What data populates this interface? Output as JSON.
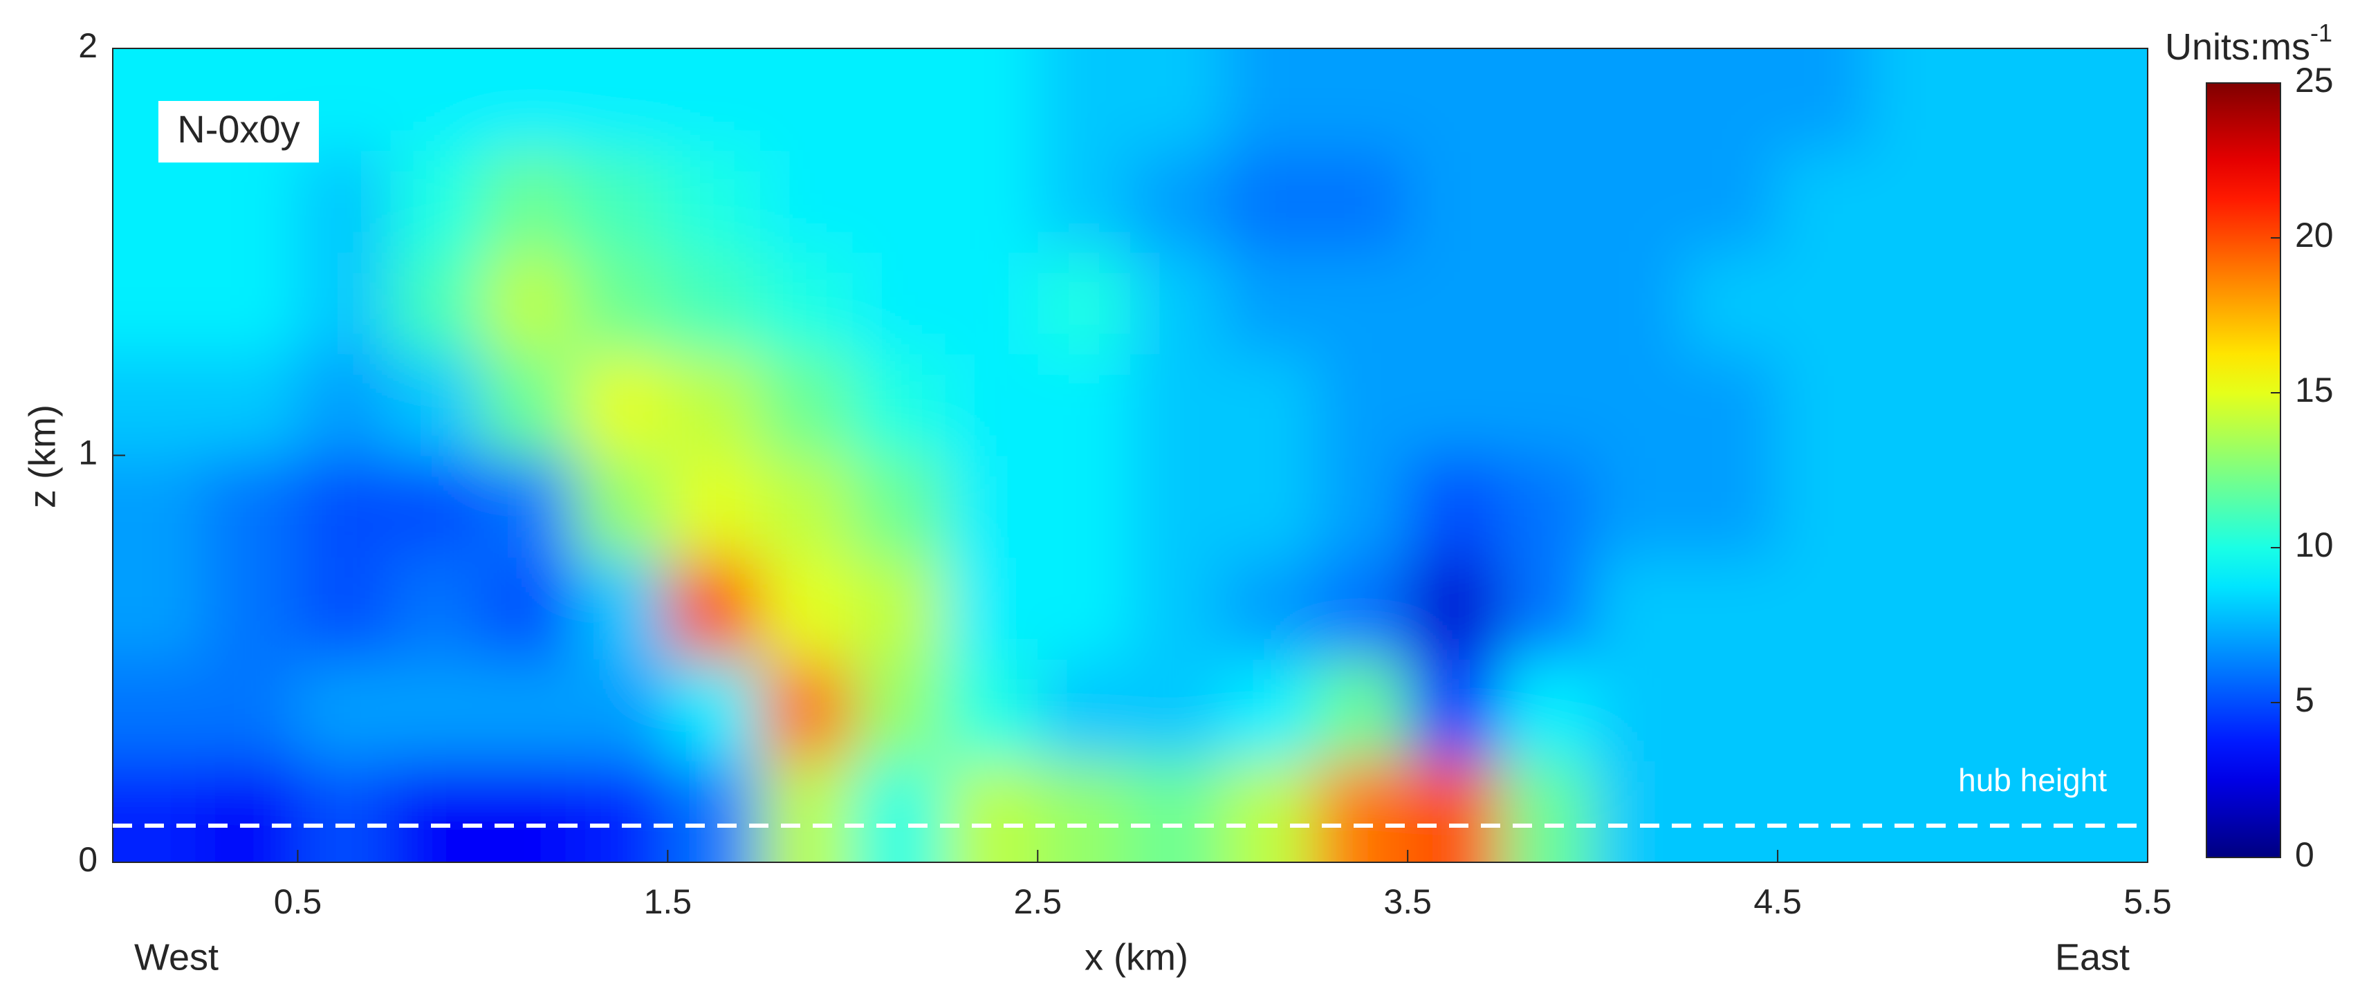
{
  "chart_data": {
    "type": "heatmap",
    "annotation": "N-0x0y",
    "hub_label": "hub height",
    "hub_height": 0.09,
    "x_label": "x (km)",
    "y_label": "z (km)",
    "west_label": "West",
    "east_label": "East",
    "colorbar_label": "Units:ms",
    "colorbar_label_sup": "-1",
    "colormap": "jet",
    "xlim": [
      0,
      5.5
    ],
    "xticks": [
      0.5,
      1.5,
      2.5,
      3.5,
      4.5,
      5.5
    ],
    "ylim": [
      0,
      2
    ],
    "yticks": [
      0,
      1,
      2
    ],
    "clim": [
      0,
      25
    ],
    "cticks": [
      0,
      5,
      10,
      15,
      20,
      25
    ],
    "x": [
      0.125,
      0.375,
      0.625,
      0.875,
      1.125,
      1.375,
      1.625,
      1.875,
      2.125,
      2.375,
      2.625,
      2.875,
      3.125,
      3.375,
      3.625,
      3.875,
      4.125,
      4.375,
      4.625,
      4.875,
      5.125,
      5.375
    ],
    "y": [
      0.125,
      0.375,
      0.625,
      0.875,
      1.125,
      1.375,
      1.625,
      1.875
    ],
    "values": [
      [
        4,
        3,
        5,
        3,
        3,
        4,
        6,
        14,
        10,
        14,
        13,
        12,
        14,
        19,
        20,
        12,
        8,
        8,
        8,
        8,
        8,
        8
      ],
      [
        6,
        6,
        7,
        7,
        7,
        7,
        9,
        19,
        13,
        10,
        8,
        8,
        9,
        12,
        4,
        9,
        8,
        8,
        8,
        8,
        8,
        8
      ],
      [
        7,
        6,
        5,
        6,
        5,
        8,
        20,
        15,
        14,
        9,
        9,
        8,
        7,
        6,
        2,
        6,
        8,
        8,
        8,
        8,
        8,
        8
      ],
      [
        7,
        6,
        5,
        5,
        6,
        13,
        15,
        14,
        12,
        9,
        9,
        8,
        8,
        7,
        5,
        6,
        7,
        7,
        8,
        8,
        8,
        8
      ],
      [
        8,
        8,
        7,
        8,
        12,
        15,
        14,
        12,
        10,
        9,
        9,
        8,
        8,
        7,
        7,
        7,
        7,
        7,
        8,
        8,
        8,
        8
      ],
      [
        9,
        9,
        8,
        11,
        14,
        12,
        11,
        10,
        9,
        9,
        10,
        8,
        7,
        7,
        7,
        7,
        7,
        8,
        8,
        8,
        8,
        8
      ],
      [
        9,
        9,
        8,
        10,
        12,
        11,
        10,
        9,
        9,
        9,
        8,
        7,
        6,
        6,
        7,
        7,
        7,
        7,
        8,
        8,
        8,
        8
      ],
      [
        9,
        9,
        9,
        9,
        9,
        9,
        9,
        9,
        9,
        9,
        8,
        8,
        7,
        7,
        7,
        7,
        7,
        7,
        7,
        8,
        8,
        8
      ]
    ]
  }
}
